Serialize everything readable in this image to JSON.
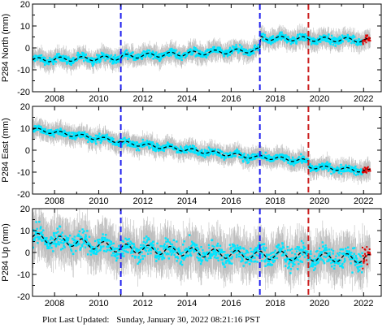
{
  "chart_data": [
    {
      "type": "scatter",
      "ylabel": "P284 North (mm)",
      "xlim": [
        2007.0,
        2022.8
      ],
      "ylim": [
        -20,
        20
      ],
      "x_ticks": [
        2008,
        2010,
        2012,
        2014,
        2016,
        2018,
        2020,
        2022
      ],
      "y_ticks": [
        -20,
        -10,
        0,
        10,
        20
      ],
      "grid": false,
      "event_lines": [
        {
          "x": 2011.0,
          "color": "#2020ee",
          "style": "dashed"
        },
        {
          "x": 2017.3,
          "color": "#2020ee",
          "style": "dashed"
        },
        {
          "x": 2019.5,
          "color": "#cc2020",
          "style": "dashed"
        }
      ],
      "model_trend": {
        "segments": [
          {
            "x": [
              2007.0,
              2011.0
            ],
            "y": [
              -5.5,
              -4.5
            ]
          },
          {
            "x": [
              2011.0,
              2017.3
            ],
            "y": [
              -4.0,
              -1.0
            ]
          },
          {
            "x": [
              2017.3,
              2022.3
            ],
            "y": [
              4.5,
              3.5
            ]
          }
        ],
        "seasonal_amplitude": 1.0
      },
      "data_range": [
        2007.0,
        2022.3
      ],
      "scatter": 1.5,
      "error_bar": 3.5,
      "colors": {
        "points": "#00e5ff",
        "errors": "#a8a8a8",
        "model": "#000000",
        "recent": "#dd0000"
      }
    },
    {
      "type": "scatter",
      "ylabel": "P284 East (mm)",
      "xlim": [
        2007.0,
        2022.8
      ],
      "ylim": [
        -20,
        20
      ],
      "x_ticks": [
        2008,
        2010,
        2012,
        2014,
        2016,
        2018,
        2020,
        2022
      ],
      "y_ticks": [
        -20,
        -10,
        0,
        10,
        20
      ],
      "grid": false,
      "event_lines": [
        {
          "x": 2011.0,
          "color": "#2020ee",
          "style": "dashed"
        },
        {
          "x": 2017.3,
          "color": "#2020ee",
          "style": "dashed"
        },
        {
          "x": 2019.5,
          "color": "#cc2020",
          "style": "dashed"
        }
      ],
      "model_trend": {
        "segments": [
          {
            "x": [
              2007.0,
              2011.0
            ],
            "y": [
              9.5,
              4.0
            ]
          },
          {
            "x": [
              2011.0,
              2017.3
            ],
            "y": [
              3.5,
              -3.5
            ]
          },
          {
            "x": [
              2017.3,
              2019.5
            ],
            "y": [
              -3.0,
              -5.0
            ]
          },
          {
            "x": [
              2019.5,
              2022.3
            ],
            "y": [
              -7.5,
              -9.5
            ]
          }
        ],
        "seasonal_amplitude": 0.8
      },
      "data_range": [
        2007.0,
        2022.3
      ],
      "scatter": 1.5,
      "error_bar": 3.5,
      "colors": {
        "points": "#00e5ff",
        "errors": "#a8a8a8",
        "model": "#000000",
        "recent": "#dd0000"
      }
    },
    {
      "type": "scatter",
      "ylabel": "P284 Up (mm)",
      "xlim": [
        2007.0,
        2022.8
      ],
      "ylim": [
        -20,
        20
      ],
      "x_ticks": [
        2008,
        2010,
        2012,
        2014,
        2016,
        2018,
        2020,
        2022
      ],
      "y_ticks": [
        -20,
        -10,
        0,
        10,
        20
      ],
      "grid": false,
      "event_lines": [
        {
          "x": 2011.0,
          "color": "#2020ee",
          "style": "dashed"
        },
        {
          "x": 2017.3,
          "color": "#2020ee",
          "style": "dashed"
        },
        {
          "x": 2019.5,
          "color": "#cc2020",
          "style": "dashed"
        }
      ],
      "model_trend": {
        "segments": [
          {
            "x": [
              2007.0,
              2011.0
            ],
            "y": [
              7.0,
              2.0
            ]
          },
          {
            "x": [
              2011.0,
              2017.3
            ],
            "y": [
              2.0,
              -1.5
            ]
          },
          {
            "x": [
              2017.3,
              2022.3
            ],
            "y": [
              -1.0,
              -3.0
            ]
          }
        ],
        "seasonal_amplitude": 2.0
      },
      "data_range": [
        2007.0,
        2022.3
      ],
      "scatter": 4.0,
      "error_bar": 8.0,
      "colors": {
        "points": "#00e5ff",
        "errors": "#a8a8a8",
        "model": "#000000",
        "recent": "#dd0000"
      }
    }
  ],
  "footer": {
    "label": "Plot Last Updated:",
    "timestamp": "Sunday, January 30, 2022 08:21:16 PST"
  }
}
